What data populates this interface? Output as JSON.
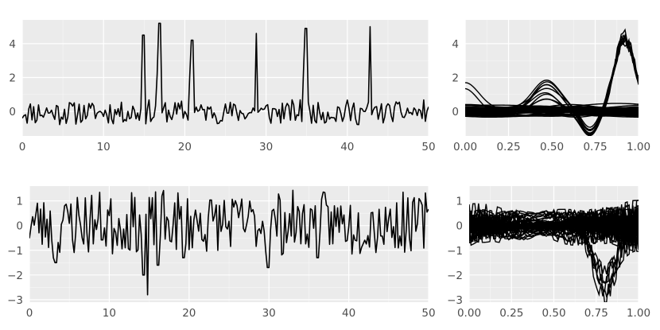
{
  "chart_data": [
    {
      "id": "top-left",
      "type": "line",
      "title": "",
      "xlabel": "",
      "ylabel": "",
      "xlim": [
        0,
        50
      ],
      "ylim": [
        -1.45,
        5.4
      ],
      "x_ticks": [
        0,
        10,
        20,
        30,
        40,
        50
      ],
      "x_tick_labels": [
        "0",
        "10",
        "20",
        "30",
        "40",
        "50"
      ],
      "y_ticks": [
        0,
        2,
        4
      ],
      "y_tick_labels": [
        "0",
        "2",
        "4"
      ],
      "grid": true,
      "noise": {
        "seed": 11,
        "samples_per_unit": 5,
        "amplitude": 0.42,
        "offset": -0.05
      },
      "peaks": [
        {
          "x": 14.9,
          "y": 4.5
        },
        {
          "x": 16.55,
          "y": 2.2
        },
        {
          "x": 16.9,
          "y": 5.2
        },
        {
          "x": 20.55,
          "y": 2.0
        },
        {
          "x": 20.9,
          "y": 4.2
        },
        {
          "x": 28.8,
          "y": 4.6
        },
        {
          "x": 34.55,
          "y": 2.3
        },
        {
          "x": 34.9,
          "y": 4.9
        },
        {
          "x": 42.8,
          "y": 5.0
        }
      ],
      "series": [
        {
          "color": "#000000"
        }
      ]
    },
    {
      "id": "top-right",
      "type": "line",
      "title": "",
      "xlabel": "",
      "ylabel": "",
      "xlim": [
        0,
        1
      ],
      "ylim": [
        -1.45,
        5.4
      ],
      "x_ticks": [
        0,
        0.25,
        0.5,
        0.75,
        1
      ],
      "x_tick_labels": [
        "0.00",
        "0.25",
        "0.50",
        "0.75",
        "1.00"
      ],
      "y_ticks": [
        0,
        2,
        4
      ],
      "y_tick_labels": [
        "0",
        "2",
        "4"
      ],
      "grid": true,
      "curves": {
        "count": 50,
        "seed": 7,
        "peak_curves": 9,
        "peak_x": 0.92,
        "peak_height": 4.7,
        "bump_x": 0.47,
        "bump_height": 1.8,
        "dip_x": 0.72,
        "dip_depth": -1.2
      },
      "series": [
        {
          "color": "#000000"
        }
      ]
    },
    {
      "id": "bottom-left",
      "type": "line",
      "title": "",
      "xlabel": "",
      "ylabel": "",
      "xlim": [
        0,
        50
      ],
      "ylim": [
        -3.1,
        1.6
      ],
      "x_ticks": [
        0,
        10,
        20,
        30,
        40,
        50
      ],
      "x_tick_labels": [
        "0",
        "10",
        "20",
        "30",
        "40",
        "50"
      ],
      "y_ticks": [
        -3,
        -2,
        -1,
        0,
        1
      ],
      "y_tick_labels": [
        "−3",
        "−2",
        "−1",
        "0",
        "1"
      ],
      "grid": true,
      "noise": {
        "seed": 23,
        "samples_per_unit": 5,
        "amplitude": 0.75,
        "offset": 0.1
      },
      "dips": [
        {
          "x": 3.0,
          "y": -1.3
        },
        {
          "x": 3.3,
          "y": -1.5
        },
        {
          "x": 14.85,
          "y": -2.8
        },
        {
          "x": 14.3,
          "y": -2.0
        },
        {
          "x": 16.1,
          "y": -1.6
        },
        {
          "x": 19.3,
          "y": -1.3
        },
        {
          "x": 29.9,
          "y": -1.7
        },
        {
          "x": 36.1,
          "y": -1.3
        }
      ],
      "series": [
        {
          "color": "#000000"
        }
      ]
    },
    {
      "id": "bottom-right",
      "type": "line",
      "title": "",
      "xlabel": "",
      "ylabel": "",
      "xlim": [
        0,
        1
      ],
      "ylim": [
        -3.1,
        1.6
      ],
      "x_ticks": [
        0,
        0.25,
        0.5,
        0.75,
        1
      ],
      "x_tick_labels": [
        "0.00",
        "0.25",
        "0.50",
        "0.75",
        "1.00"
      ],
      "y_ticks": [
        -3,
        -2,
        -1,
        0,
        1
      ],
      "y_tick_labels": [
        "−3",
        "−2",
        "−1",
        "0",
        "1"
      ],
      "grid": true,
      "curves": {
        "count": 50,
        "seed": 3,
        "dip_x": 0.8,
        "deep_dip": -2.8
      },
      "series": [
        {
          "color": "#000000"
        }
      ]
    }
  ]
}
